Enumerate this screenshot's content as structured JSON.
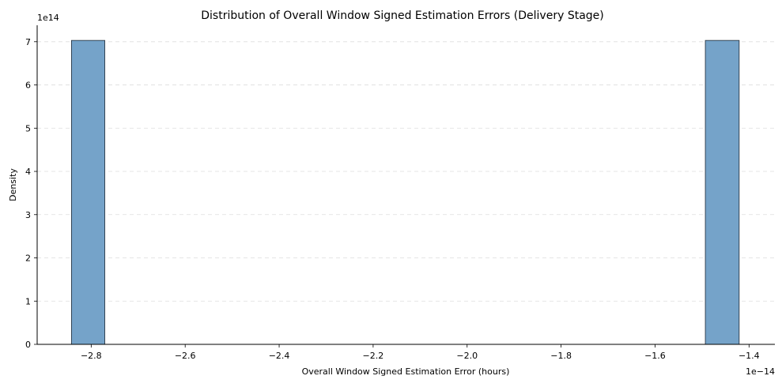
{
  "chart_data": {
    "type": "bar",
    "title": "Distribution of Overall Window Signed Estimation Errors (Delivery Stage)",
    "xlabel": "Overall Window Signed Estimation Error (hours)",
    "ylabel": "Density",
    "x_offset_label": "1e−14",
    "y_offset_label": "1e14",
    "xlim": [
      -2.915,
      -1.345
    ],
    "ylim": [
      0,
      7.38
    ],
    "x_ticks": [
      -2.8,
      -2.6,
      -2.4,
      -2.2,
      -2.0,
      -1.8,
      -1.6,
      -1.4
    ],
    "x_tick_labels": [
      "−2.8",
      "−2.6",
      "−2.4",
      "−2.2",
      "−2.0",
      "−1.8",
      "−1.6",
      "−1.4"
    ],
    "y_ticks": [
      0,
      1,
      2,
      3,
      4,
      5,
      6,
      7
    ],
    "y_tick_labels": [
      "0",
      "1",
      "2",
      "3",
      "4",
      "5",
      "6",
      "7"
    ],
    "grid": "y-dashed",
    "bars": [
      {
        "x0": -2.842,
        "x1": -2.771,
        "value": 7.03
      },
      {
        "x0": -1.493,
        "x1": -1.421,
        "value": 7.03
      }
    ],
    "colors": {
      "bar_fill": "#75a3c9",
      "bar_edge": "#1f2a36",
      "grid": "#dddddd"
    }
  }
}
